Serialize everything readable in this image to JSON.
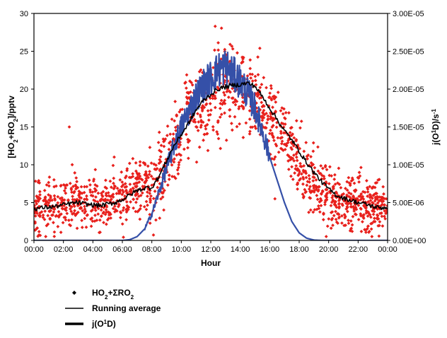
{
  "chart_data": {
    "type": "scatter",
    "xlabel": "Hour",
    "ylabel_left_parts": [
      "[HO",
      "2",
      "+RO",
      "2",
      "]/pptv"
    ],
    "ylabel_right_parts": [
      "j(O",
      "1",
      "D)/s",
      "-1"
    ],
    "x_ticks": [
      "00:00",
      "02:00",
      "04:00",
      "06:00",
      "08:00",
      "10:00",
      "12:00",
      "14:00",
      "16:00",
      "18:00",
      "20:00",
      "22:00",
      "00:00"
    ],
    "x_range_hours": [
      0,
      24
    ],
    "ylim_left": [
      0,
      30
    ],
    "y_ticks_left": [
      "0",
      "5",
      "10",
      "15",
      "20",
      "25",
      "30"
    ],
    "ylim_right": [
      0,
      3e-05
    ],
    "y_ticks_right": [
      "0.00E+00",
      "5.00E-06",
      "1.00E-05",
      "1.50E-05",
      "2.00E-05",
      "2.50E-05",
      "3.00E-05"
    ],
    "grid": false,
    "legend_position": "below",
    "legend": [
      {
        "marker": "diamond",
        "label_parts": [
          "HO",
          "2",
          "+ΣRO",
          "2"
        ]
      },
      {
        "marker": "thin-line",
        "label_parts": [
          "Running average"
        ]
      },
      {
        "marker": "thick-line",
        "label_parts": [
          "j(O",
          "1",
          "D)"
        ]
      }
    ],
    "series": [
      {
        "name": "HO2+ΣRO2",
        "kind": "scatter",
        "color": "#e8201c",
        "envelope": {
          "x": [
            0,
            1,
            2,
            3,
            4,
            5,
            6,
            7,
            8,
            9,
            10,
            11,
            12,
            13,
            14,
            15,
            16,
            17,
            18,
            19,
            20,
            21,
            22,
            23,
            24
          ],
          "center": [
            4.2,
            4.4,
            4.8,
            5.0,
            4.8,
            4.9,
            5.8,
            6.8,
            7.0,
            11.0,
            14.5,
            17.5,
            19.0,
            21.0,
            20.0,
            19.0,
            17.0,
            13.5,
            10.0,
            7.5,
            6.0,
            5.2,
            4.8,
            4.5,
            4.3
          ],
          "spread": [
            2.0,
            2.0,
            2.0,
            2.0,
            2.0,
            2.0,
            2.2,
            2.2,
            2.5,
            3.0,
            3.0,
            3.0,
            3.2,
            3.2,
            3.2,
            3.0,
            3.0,
            3.0,
            2.8,
            2.5,
            2.2,
            2.0,
            2.0,
            2.0,
            2.0
          ]
        },
        "outliers": [
          {
            "x": 2.4,
            "y": 15.0
          },
          {
            "x": 12.3,
            "y": 28.3
          }
        ]
      },
      {
        "name": "Running average",
        "kind": "line",
        "color": "#000000",
        "x": [
          0,
          0.5,
          1,
          1.5,
          2,
          2.5,
          3,
          3.5,
          4,
          4.5,
          5,
          5.5,
          6,
          6.5,
          7,
          7.5,
          8,
          8.5,
          9,
          9.5,
          10,
          10.5,
          11,
          11.5,
          12,
          12.5,
          13,
          13.5,
          14,
          14.5,
          15,
          15.5,
          16,
          16.5,
          17,
          17.5,
          18,
          18.5,
          19,
          19.5,
          20,
          20.5,
          21,
          21.5,
          22,
          22.5,
          23,
          23.5,
          24
        ],
        "y": [
          4.2,
          4.3,
          4.4,
          4.5,
          4.7,
          4.9,
          5.0,
          4.8,
          4.7,
          4.6,
          4.8,
          5.0,
          5.4,
          6.0,
          6.6,
          6.9,
          7.0,
          8.5,
          10.5,
          12.5,
          14.0,
          15.5,
          17.2,
          18.5,
          19.3,
          20.0,
          20.3,
          20.5,
          20.6,
          20.8,
          20.4,
          19.0,
          17.5,
          16.0,
          14.5,
          13.3,
          11.8,
          10.3,
          9.0,
          7.8,
          6.8,
          6.0,
          5.6,
          5.3,
          5.0,
          4.8,
          4.5,
          4.3,
          4.4
        ]
      },
      {
        "name": "j(O1D)",
        "kind": "line",
        "axis": "right",
        "color": "#3550a8",
        "x": [
          0,
          6,
          6.5,
          7,
          7.5,
          8,
          8.5,
          9,
          9.5,
          10,
          10.5,
          11,
          11.5,
          12,
          12.5,
          13,
          13.5,
          14,
          14.5,
          15,
          15.5,
          16,
          16.5,
          17,
          17.5,
          18,
          18.5,
          19,
          19.5,
          20,
          24
        ],
        "y": [
          0,
          0,
          1e-07,
          5e-07,
          1.5e-06,
          3.5e-06,
          6.5e-06,
          9.5e-06,
          1.25e-05,
          1.5e-05,
          1.7e-05,
          1.9e-05,
          2.05e-05,
          2.15e-05,
          2.25e-05,
          2.3e-05,
          2.2e-05,
          2.1e-05,
          1.95e-05,
          1.75e-05,
          1.45e-05,
          1.1e-05,
          8e-06,
          5e-06,
          2.5e-06,
          1e-06,
          3e-07,
          5e-08,
          0,
          0,
          0
        ]
      }
    ]
  }
}
